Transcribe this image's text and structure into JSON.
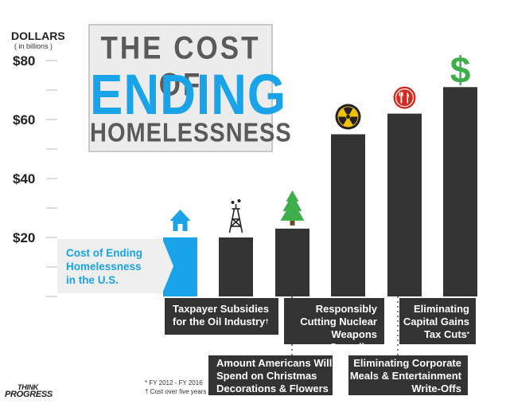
{
  "title": {
    "line1": "THE COST OF",
    "line2": "ENDING",
    "line3": "HOMELESSNESS"
  },
  "y_axis": {
    "title": "DOLLARS",
    "subtitle": "( in billions )"
  },
  "colors": {
    "accent": "#1aa3e8",
    "bar": "#333333",
    "tree": "#3dae49",
    "dollar": "#3dae49",
    "nuclear": "#f2c200",
    "meals": "#d42a20"
  },
  "cost_label": {
    "line1": "Cost of Ending",
    "line2": "Homelessness",
    "line3": "in the U.S."
  },
  "callouts": [
    {
      "lines": [
        "Taxpayer Subsidies",
        "for the Oil Industry"
      ],
      "mark": "†"
    },
    {
      "lines": [
        "Amount Americans Will",
        "Spend on Christmas",
        "Decorations & Flowers"
      ],
      "mark": ""
    },
    {
      "lines": [
        "Responsibly",
        "Cutting Nuclear",
        "Weapons Spending"
      ],
      "mark": ""
    },
    {
      "lines": [
        "Eliminating Corporate",
        "Meals & Entertainment",
        "Write-Offs"
      ],
      "mark": ""
    },
    {
      "lines": [
        "Eliminating",
        "Capital Gains",
        "Tax Cuts"
      ],
      "mark": "*"
    }
  ],
  "footnotes": {
    "line1": "* FY 2012 - FY 2016",
    "line2": "† Cost over five years"
  },
  "logo": {
    "line1": "THINK",
    "line2": "PROGRESS"
  },
  "chart_data": {
    "type": "bar",
    "categories": [
      "Cost of Ending Homelessness in the U.S.",
      "Taxpayer Subsidies for the Oil Industry",
      "Amount Americans Will Spend on Christmas Decorations & Flowers",
      "Responsibly Cutting Nuclear Weapons Spending",
      "Eliminating Corporate Meals & Entertainment Write-Offs",
      "Eliminating Capital Gains Tax Cuts"
    ],
    "values": [
      20,
      20,
      23,
      55,
      62,
      71
    ],
    "icons": [
      "house-icon",
      "oil-derrick-icon",
      "christmas-tree-icon",
      "nuclear-icon",
      "fork-knife-icon",
      "dollar-sign-icon"
    ],
    "bar_colors": [
      "#1aa3e8",
      "#333333",
      "#333333",
      "#333333",
      "#333333",
      "#333333"
    ],
    "ylim": [
      0,
      85
    ],
    "yticks": [
      20,
      40,
      60,
      80
    ],
    "ytick_labels": [
      "$20",
      "$40",
      "$60",
      "$80"
    ],
    "minor_ticks": [
      10,
      30,
      50,
      70
    ],
    "ylabel": "DOLLARS",
    "grid": false
  }
}
